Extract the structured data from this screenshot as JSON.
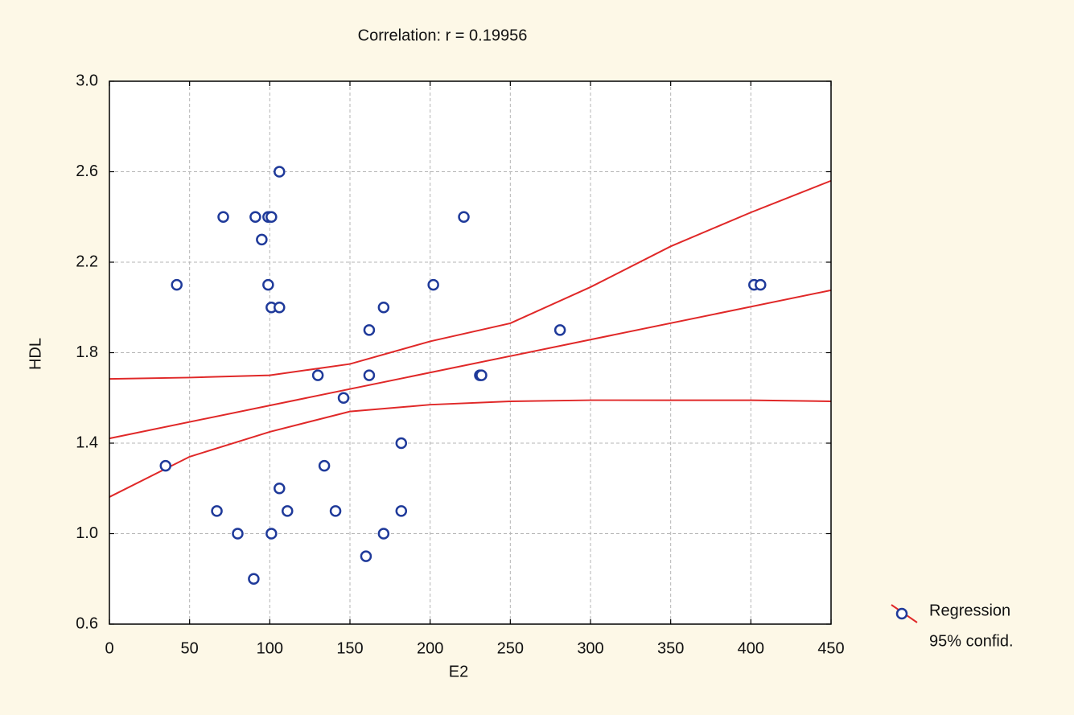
{
  "chart_data": {
    "type": "scatter",
    "title": "Correlation: r = 0.19956",
    "x_label": "E2",
    "y_label": "HDL",
    "xlim": [
      0,
      450
    ],
    "ylim": [
      0.6,
      3.0
    ],
    "xticks": [
      0,
      50,
      100,
      150,
      200,
      250,
      300,
      350,
      400,
      450
    ],
    "yticks": [
      0.6,
      {
        "value": 1,
        "label": "1.0"
      },
      1.4,
      1.8,
      2.2,
      2.6,
      {
        "value": 3,
        "label": "3.0"
      }
    ],
    "grid": true,
    "legend_position": "bottom-right",
    "points": {
      "color": "#1f3a9a",
      "x": [
        35,
        42,
        71,
        67,
        80,
        90,
        91,
        95,
        99,
        101,
        99,
        101,
        106,
        106,
        106,
        101,
        111,
        130,
        134,
        141,
        146,
        162,
        162,
        160,
        171,
        171,
        182,
        182,
        202,
        221,
        231,
        232,
        281,
        402,
        406
      ],
      "values": [
        1.3,
        2.1,
        2.4,
        1.1,
        1.0,
        0.8,
        2.4,
        2.3,
        2.4,
        2.4,
        2.1,
        2.0,
        2.0,
        2.6,
        1.2,
        1.0,
        1.1,
        1.7,
        1.3,
        1.1,
        1.6,
        1.9,
        1.7,
        0.9,
        2.0,
        1.0,
        1.4,
        1.1,
        2.1,
        2.4,
        1.7,
        1.7,
        1.9,
        2.1,
        2.1
      ]
    },
    "series": [
      {
        "name": "Regression",
        "color": "#e02828",
        "x": [
          0,
          450
        ],
        "values": [
          1.421,
          2.076
        ]
      },
      {
        "name": "95% confid.",
        "color": "#e02828",
        "x": [
          0,
          50,
          100,
          150,
          200,
          250,
          300,
          350,
          400,
          450
        ],
        "upper": [
          1.684,
          1.69,
          1.7,
          1.75,
          1.85,
          1.93,
          2.09,
          2.27,
          2.42,
          2.56
        ],
        "lower": [
          1.162,
          1.34,
          1.45,
          1.54,
          1.57,
          1.585,
          1.59,
          1.59,
          1.59,
          1.585
        ]
      }
    ]
  }
}
